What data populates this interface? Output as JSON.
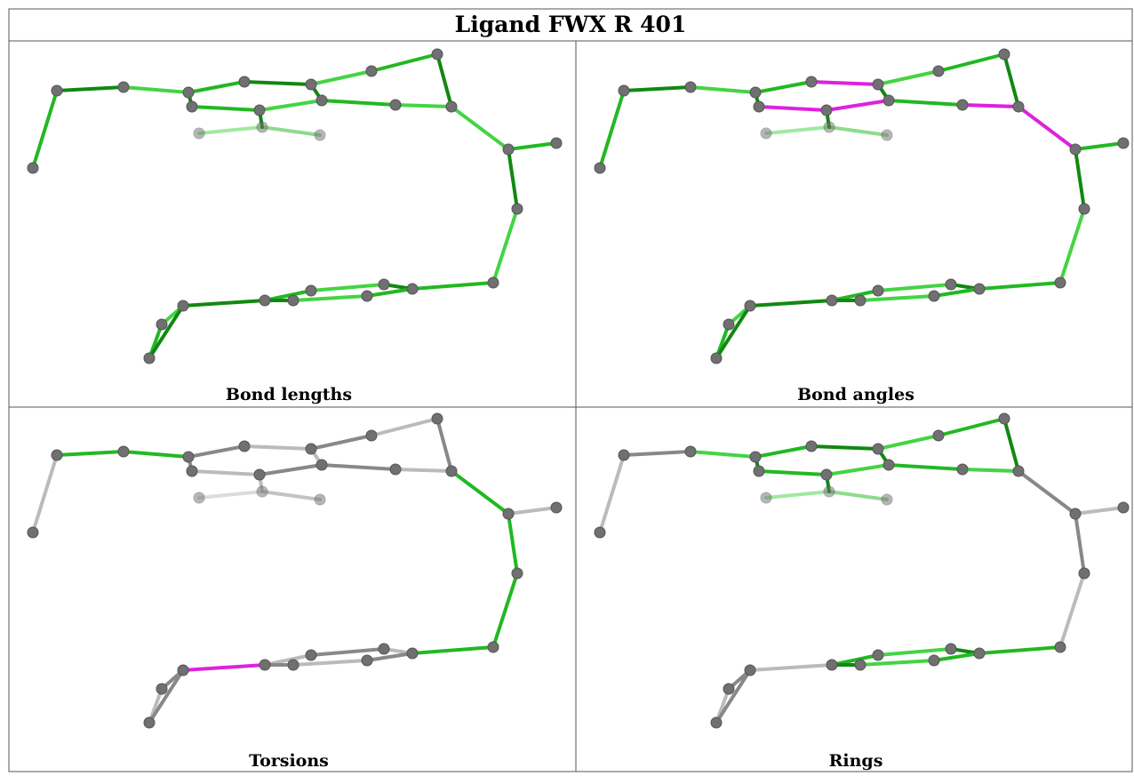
{
  "title": "Ligand FWX R 401",
  "panels": [
    {
      "label": "Bond lengths"
    },
    {
      "label": "Bond angles"
    },
    {
      "label": "Torsions"
    },
    {
      "label": "Rings"
    }
  ]
}
